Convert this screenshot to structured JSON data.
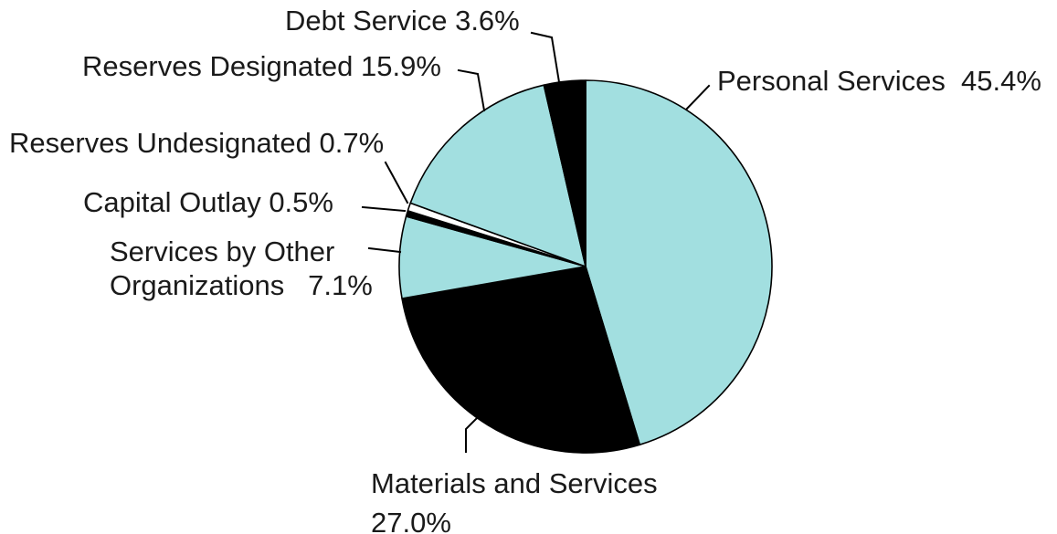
{
  "chart_data": {
    "type": "pie",
    "title": "",
    "slices": [
      {
        "name": "Personal Services",
        "value": 45.4,
        "color": "#a2dfe0",
        "label_lines": [
          "Personal Services  45.4%"
        ]
      },
      {
        "name": "Materials and Services",
        "value": 27.0,
        "color": "#000000",
        "label_lines": [
          "Materials and Services",
          "27.0%"
        ]
      },
      {
        "name": "Services by Other Organizations",
        "value": 7.1,
        "color": "#a2dfe0",
        "label_lines": [
          "Services by Other",
          "Organizations   7.1%"
        ]
      },
      {
        "name": "Capital Outlay",
        "value": 0.5,
        "color": "#000000",
        "label_lines": [
          "Capital Outlay 0.5%"
        ]
      },
      {
        "name": "Reserves Undesignated",
        "value": 0.7,
        "color": "#ffffff",
        "label_lines": [
          "Reserves Undesignated 0.7%"
        ]
      },
      {
        "name": "Reserves Designated",
        "value": 15.9,
        "color": "#a2dfe0",
        "label_lines": [
          "Reserves Designated 15.9%"
        ]
      },
      {
        "name": "Debt Service",
        "value": 3.6,
        "color": "#000000",
        "label_lines": [
          "Debt Service 3.6%"
        ]
      }
    ],
    "start_angle_deg": 0,
    "direction": "clockwise",
    "legend": "none",
    "labels": "outside with leader lines"
  }
}
